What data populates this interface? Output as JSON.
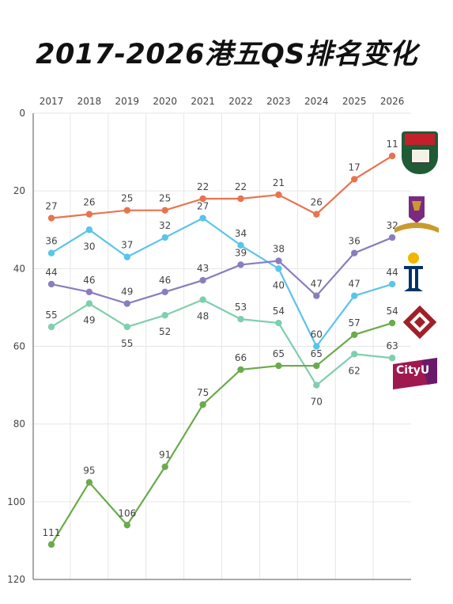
{
  "title": "2017-2026港五QS排名变化",
  "chart_data": {
    "type": "line",
    "title": "2017-2026港五QS排名变化",
    "xlabel": "",
    "ylabel": "",
    "categories": [
      "2017",
      "2018",
      "2019",
      "2020",
      "2021",
      "2022",
      "2023",
      "2024",
      "2025",
      "2026"
    ],
    "y_ticks": [
      "0",
      "20",
      "40",
      "60",
      "80",
      "100",
      "120"
    ],
    "ylim": [
      0,
      120
    ],
    "y_inverted": true,
    "grid": true,
    "legend": "logos at right end of lines",
    "series": [
      {
        "color": "#e8744f",
        "values": [
          27,
          26,
          25,
          25,
          22,
          22,
          21,
          26,
          17,
          11
        ],
        "labels": [
          "27",
          "26",
          "25",
          "25",
          "22",
          "22",
          "21",
          "26",
          "17",
          "11"
        ]
      },
      {
        "color": "#5bc4e8",
        "values": [
          36,
          30,
          37,
          32,
          27,
          34,
          40,
          60,
          47,
          44
        ],
        "labels": [
          "36",
          "30",
          "37",
          "32",
          "27",
          "34",
          "40",
          "60",
          "47",
          "44"
        ]
      },
      {
        "color": "#8a7dbf",
        "values": [
          44,
          46,
          49,
          46,
          43,
          39,
          38,
          47,
          36,
          32
        ],
        "labels": [
          "44",
          "46",
          "49",
          "46",
          "43",
          "39",
          "38",
          "47",
          "36",
          "32"
        ]
      },
      {
        "color": "#7fcfae",
        "values": [
          55,
          49,
          55,
          52,
          48,
          53,
          54,
          70,
          62,
          63
        ],
        "labels": [
          "55",
          "49",
          "55",
          "52",
          "48",
          "53",
          "54",
          "70",
          "62",
          "63"
        ]
      },
      {
        "color": "#6aab4b",
        "values": [
          111,
          95,
          106,
          91,
          75,
          66,
          65,
          65,
          57,
          54
        ],
        "labels": [
          "111",
          "95",
          "106",
          "91",
          "75",
          "66",
          "65",
          "65",
          "57",
          "54"
        ]
      }
    ]
  },
  "logos": {
    "hku": {
      "icon": "hku-crest-icon",
      "colors": [
        "#1f5c35",
        "#c4202b"
      ]
    },
    "cuhk": {
      "icon": "cuhk-phoenix-icon",
      "colors": [
        "#7b2a80",
        "#c99a2e"
      ]
    },
    "hkust": {
      "icon": "hkust-logo-icon",
      "colors": [
        "#003366",
        "#f2b600"
      ]
    },
    "polyu": {
      "icon": "polyu-logo-icon",
      "colors": [
        "#a0202a"
      ]
    },
    "cityu": {
      "icon": "cityu-logo-icon",
      "text": "CityU",
      "colors": [
        "#a01850",
        "#6b1a6b"
      ]
    }
  }
}
